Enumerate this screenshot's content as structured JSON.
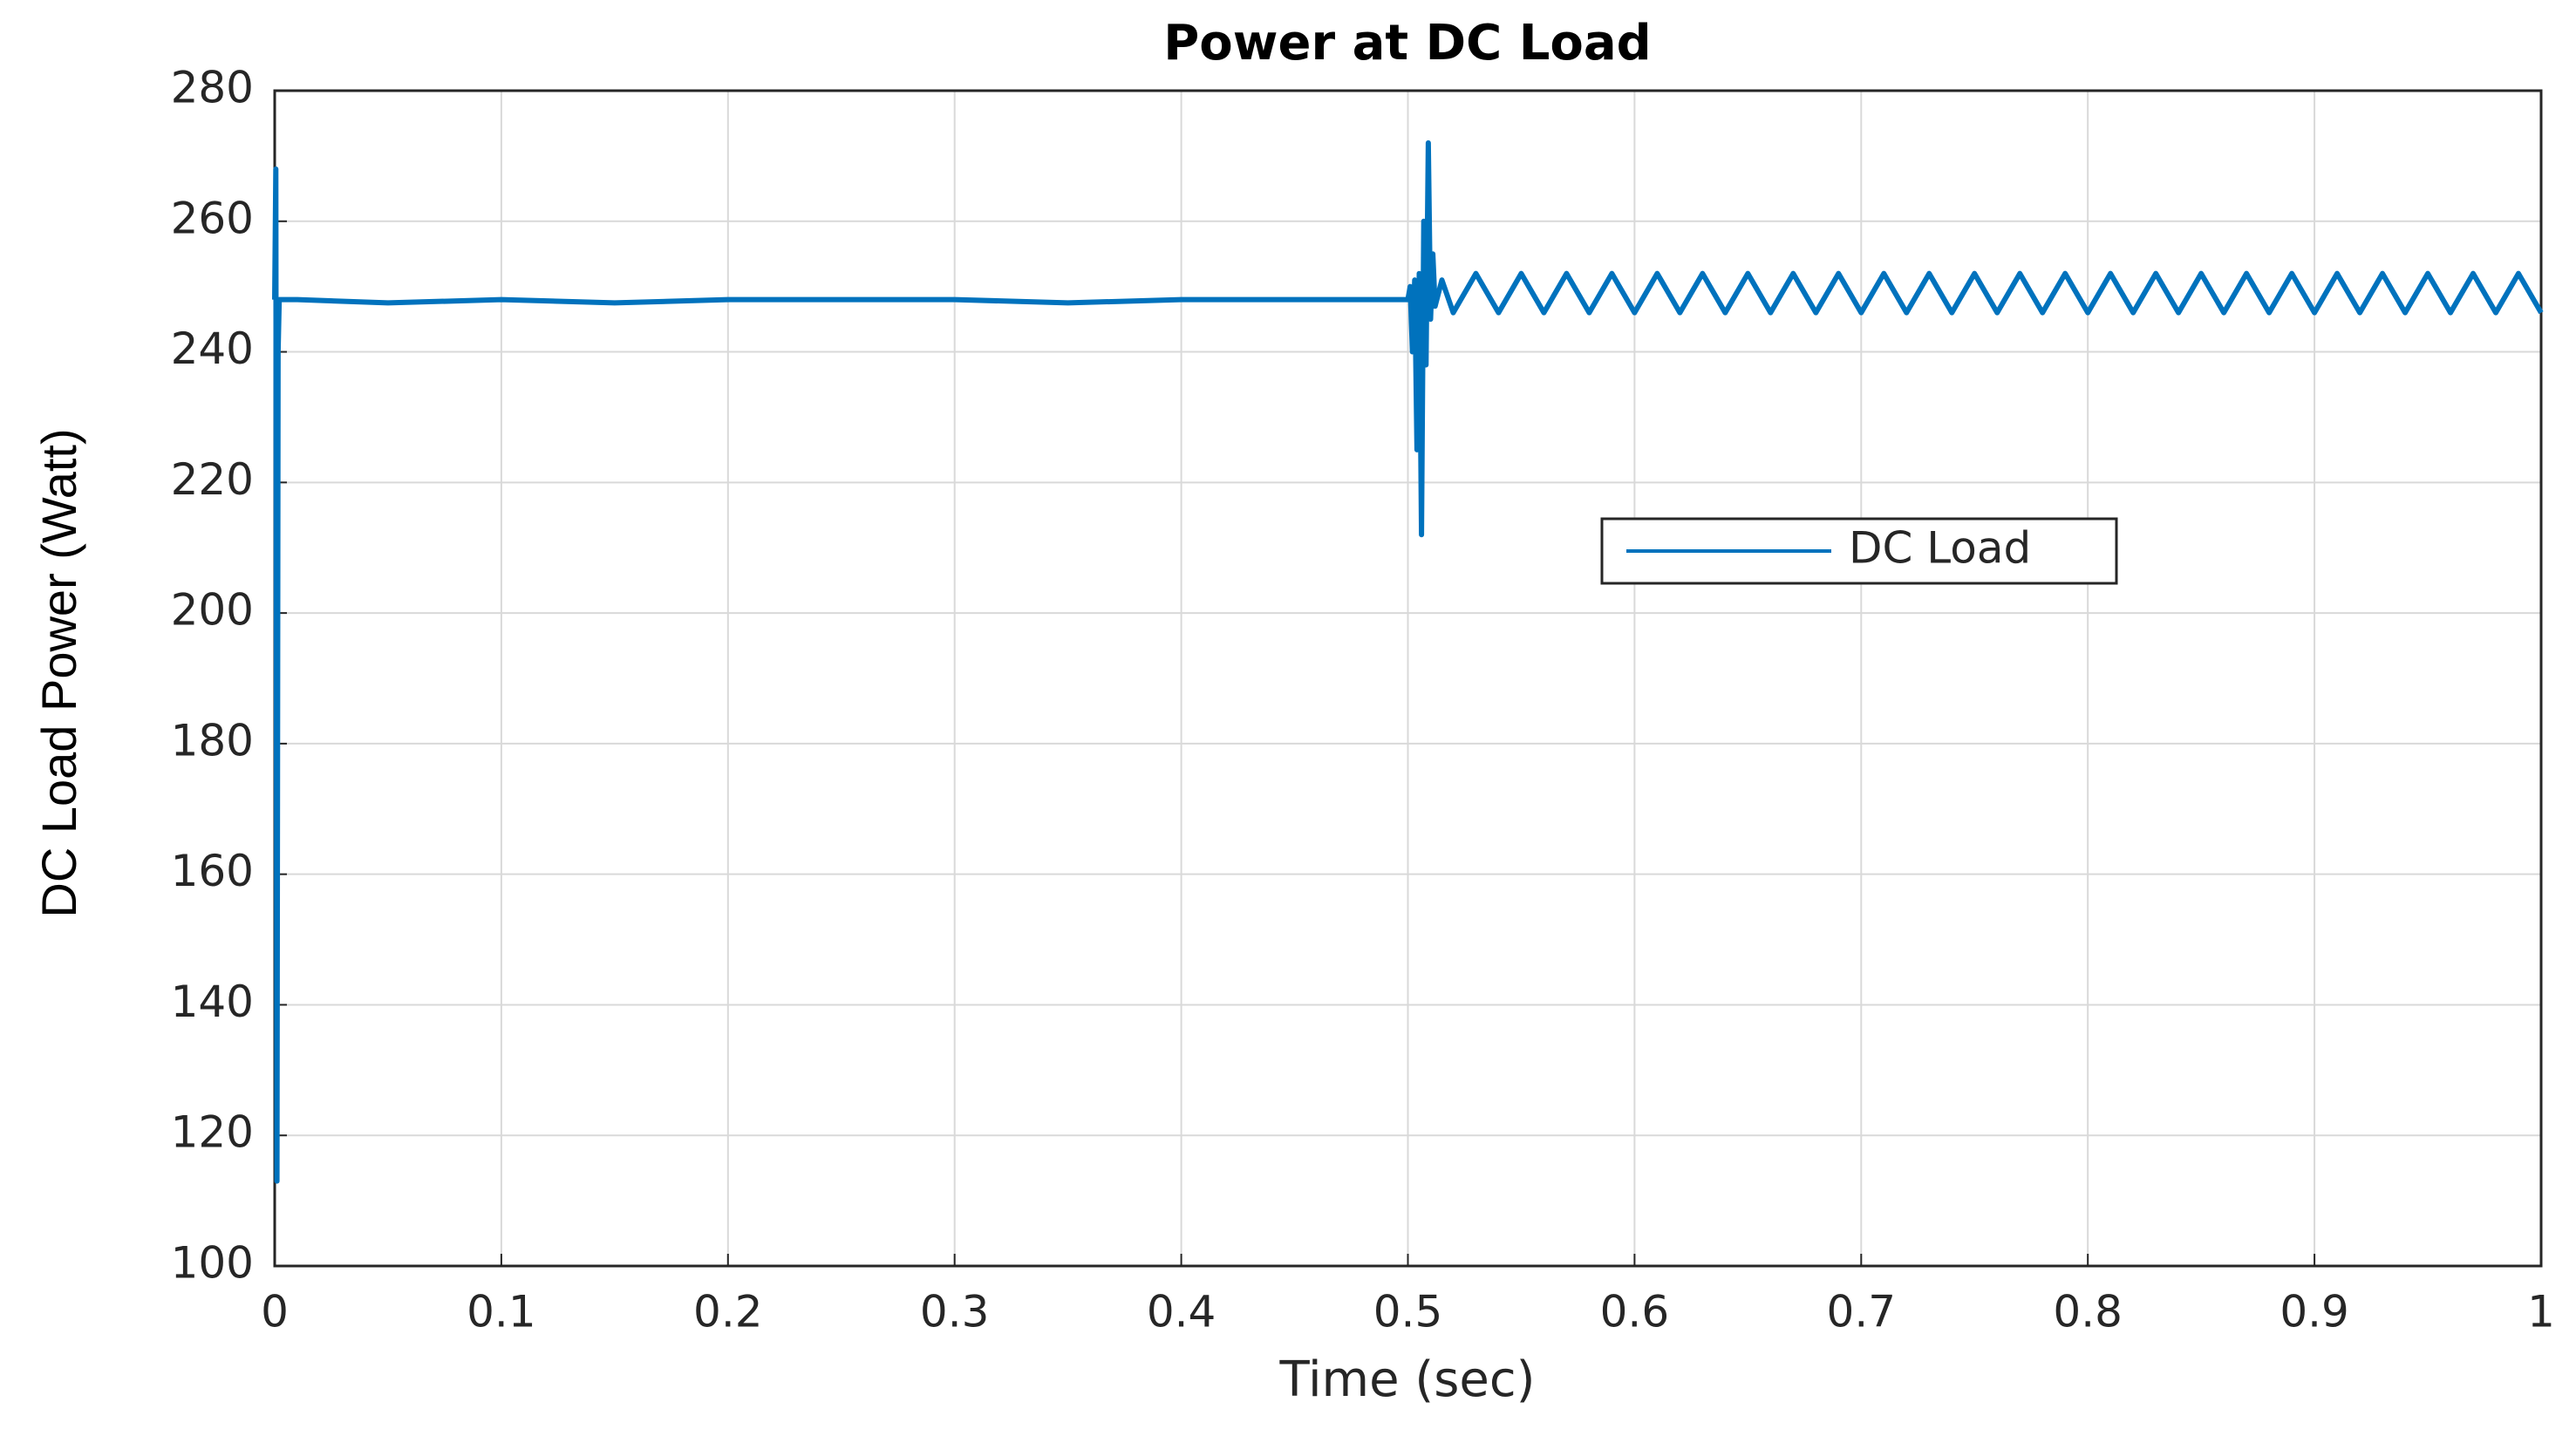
{
  "chart_data": {
    "type": "line",
    "title": "Power at DC Load",
    "xlabel": "Time  (sec)",
    "ylabel": "DC Load Power (Watt)",
    "x": [
      0,
      0.0005,
      0.001,
      0.0015,
      0.002,
      0.003,
      0.01,
      0.05,
      0.1,
      0.15,
      0.2,
      0.25,
      0.3,
      0.35,
      0.4,
      0.45,
      0.5,
      0.501,
      0.502,
      0.503,
      0.504,
      0.505,
      0.506,
      0.507,
      0.508,
      0.509,
      0.51,
      0.511,
      0.512,
      0.515,
      0.52,
      0.53,
      0.54,
      0.55,
      0.56,
      0.57,
      0.58,
      0.59,
      0.6,
      0.61,
      0.62,
      0.63,
      0.64,
      0.65,
      0.66,
      0.67,
      0.68,
      0.69,
      0.7,
      0.71,
      0.72,
      0.73,
      0.74,
      0.75,
      0.76,
      0.77,
      0.78,
      0.79,
      0.8,
      0.81,
      0.82,
      0.83,
      0.84,
      0.85,
      0.86,
      0.87,
      0.88,
      0.89,
      0.9,
      0.91,
      0.92,
      0.93,
      0.94,
      0.95,
      0.96,
      0.97,
      0.98,
      0.99,
      1
    ],
    "series": [
      {
        "name": "DC Load",
        "color": "#0072bd",
        "values": [
          248,
          268,
          113,
          240,
          248,
          248,
          248,
          247.5,
          248,
          247.5,
          248,
          248,
          248,
          247.5,
          248,
          248,
          248,
          250,
          240,
          251,
          225,
          252,
          212,
          260,
          238,
          272,
          245,
          255,
          247,
          251,
          246,
          252,
          246,
          252,
          246,
          252,
          246,
          252,
          246,
          252,
          246,
          252,
          246,
          252,
          246,
          252,
          246,
          252,
          246,
          252,
          246,
          252,
          246,
          252,
          246,
          252,
          246,
          252,
          246,
          252,
          246,
          252,
          246,
          252,
          246,
          252,
          246,
          252,
          246,
          252,
          246,
          252,
          246,
          252,
          246,
          252,
          246,
          252,
          246
        ]
      }
    ],
    "xlim": [
      0,
      1
    ],
    "xticks": [
      0,
      0.1,
      0.2,
      0.3,
      0.4,
      0.5,
      0.6,
      0.7,
      0.8,
      0.9,
      1
    ],
    "ylim": [
      100,
      280
    ],
    "yticks": [
      100,
      120,
      140,
      160,
      180,
      200,
      220,
      240,
      260,
      280
    ],
    "grid": true
  }
}
